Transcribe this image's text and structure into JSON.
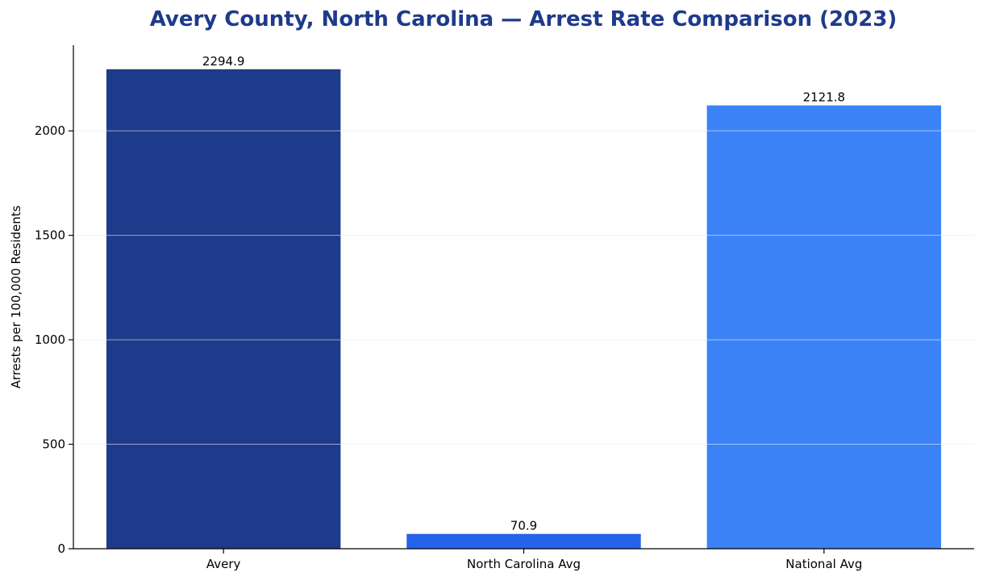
{
  "chart_data": {
    "type": "bar",
    "title": "Avery County, North Carolina — Arrest Rate Comparison (2023)",
    "xlabel": "",
    "ylabel": "Arrests per 100,000 Residents",
    "categories": [
      "Avery",
      "North Carolina Avg",
      "National Avg"
    ],
    "values": [
      2294.9,
      70.9,
      2121.8
    ],
    "value_labels": [
      "2294.9",
      "70.9",
      "2121.8"
    ],
    "colors": [
      "#1e3a8a",
      "#2563eb",
      "#3b82f6"
    ],
    "ylim": [
      0,
      2410
    ],
    "yticks": [
      0,
      500,
      1000,
      1500,
      2000
    ],
    "ytick_labels": [
      "0",
      "500",
      "1000",
      "1500",
      "2000"
    ],
    "grid": "y",
    "legend": "none"
  },
  "colors": {
    "title": "#1e3a8a",
    "grid": "#e5e5e5"
  }
}
